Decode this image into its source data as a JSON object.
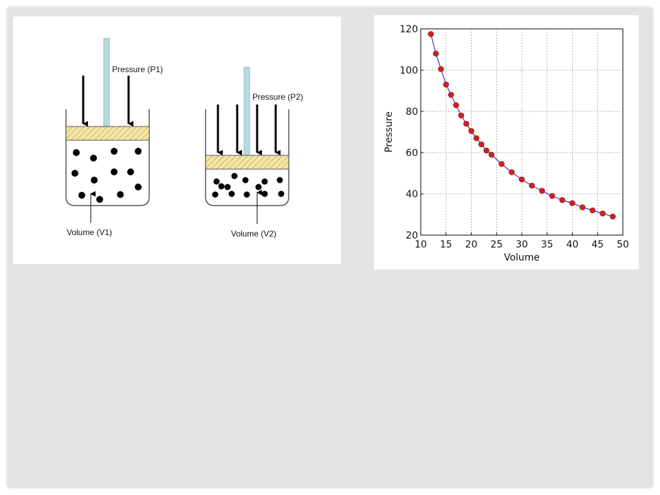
{
  "diagram": {
    "left_vessel": {
      "pressure_label": "Pressure (P1)",
      "volume_label": "Volume (V1)"
    },
    "right_vessel": {
      "pressure_label": "Pressure (P2)",
      "volume_label": "Volume (V2)"
    },
    "colors": {
      "piston_fill": "#f3e6a6",
      "piston_hatch": "#b8a860",
      "plunger_rod": "#b7dbe3",
      "particle": "#000000"
    }
  },
  "chart_data": {
    "type": "line",
    "title": "",
    "xlabel": "Volume",
    "ylabel": "Pressure",
    "xlim": [
      10,
      50
    ],
    "ylim": [
      20,
      120
    ],
    "xticks": [
      10,
      15,
      20,
      25,
      30,
      35,
      40,
      45,
      50
    ],
    "yticks": [
      20,
      40,
      60,
      80,
      100,
      120
    ],
    "grid": true,
    "colors": {
      "line": "#3333cc",
      "marker": "#cc2222"
    },
    "series": [
      {
        "x": [
          12,
          13,
          14,
          15,
          16,
          17,
          18,
          19,
          20,
          21,
          22,
          23,
          24,
          26,
          28,
          30,
          32,
          34,
          36,
          38,
          40,
          42,
          44,
          46,
          48
        ],
        "values": [
          117.5,
          108,
          100.5,
          93,
          88,
          83,
          78,
          74,
          70.5,
          67,
          64,
          61,
          59,
          54.5,
          50.5,
          47,
          44,
          41.5,
          39,
          37,
          35.5,
          33.5,
          32,
          30.5,
          29
        ]
      }
    ]
  }
}
